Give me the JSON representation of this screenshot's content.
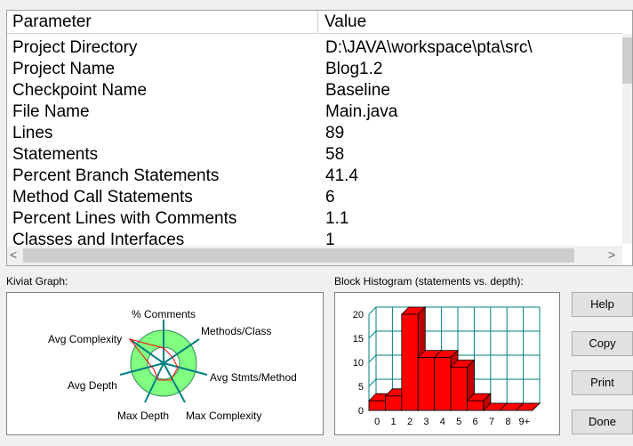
{
  "table": {
    "headers": {
      "param": "Parameter",
      "value": "Value"
    },
    "rows": [
      {
        "param": "Project Directory",
        "value": "D:\\JAVA\\workspace\\pta\\src\\"
      },
      {
        "param": "Project Name",
        "value": "Blog1.2"
      },
      {
        "param": "Checkpoint Name",
        "value": "Baseline"
      },
      {
        "param": "File Name",
        "value": "Main.java"
      },
      {
        "param": "Lines",
        "value": "89"
      },
      {
        "param": "Statements",
        "value": "58"
      },
      {
        "param": "Percent Branch Statements",
        "value": "41.4"
      },
      {
        "param": "Method Call Statements",
        "value": "6"
      },
      {
        "param": "Percent Lines with Comments",
        "value": "1.1"
      },
      {
        "param": "Classes and Interfaces",
        "value": "1"
      }
    ]
  },
  "scroll": {
    "left_arrow": "<",
    "right_arrow": ">"
  },
  "kiviat": {
    "label": "Kiviat Graph:",
    "axes": {
      "comments": "% Comments",
      "methods_class": "Methods/Class",
      "avg_stmts": "Avg Stmts/Method",
      "max_complexity": "Max Complexity",
      "max_depth": "Max Depth",
      "avg_depth": "Avg Depth",
      "avg_complexity": "Avg Complexity"
    }
  },
  "histogram": {
    "label": "Block Histogram (statements vs. depth):",
    "y_ticks": [
      "0",
      "5",
      "10",
      "15",
      "20"
    ],
    "x_ticks": [
      "0",
      "1",
      "2",
      "3",
      "4",
      "5",
      "6",
      "7",
      "8",
      "9+"
    ]
  },
  "buttons": {
    "help": "Help",
    "copy": "Copy",
    "print": "Print",
    "done": "Done"
  },
  "colors": {
    "bar": "#ff0000",
    "grid": "#008080",
    "kiviat_fill": "#80ff80"
  },
  "chart_data": {
    "type": "bar",
    "title": "Block Histogram (statements vs. depth):",
    "categories": [
      "0",
      "1",
      "2",
      "3",
      "4",
      "5",
      "6",
      "7",
      "8",
      "9+"
    ],
    "values": [
      2,
      3,
      20,
      11,
      11,
      9,
      2,
      0,
      0,
      0
    ],
    "ylim": [
      0,
      20
    ]
  }
}
